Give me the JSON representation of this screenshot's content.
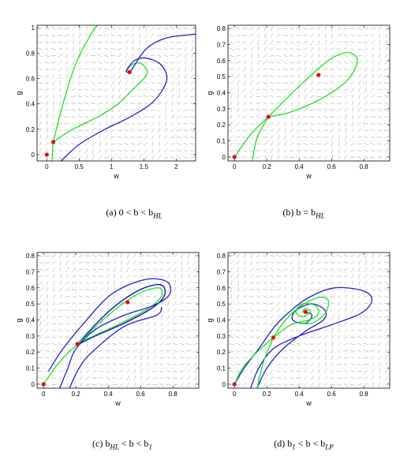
{
  "figure": {
    "panels": [
      {
        "id": "a",
        "caption": "(a)  0 < b < b",
        "caption_sub": "HL",
        "chart_data": {
          "type": "line",
          "xlabel": "w",
          "ylabel": "g",
          "xlim": [
            -0.15,
            2.3
          ],
          "ylim": [
            -0.05,
            1.02
          ],
          "xticks": [
            0,
            0.5,
            1,
            1.5,
            2
          ],
          "xtick_labels": [
            "0",
            "0.5",
            "1",
            "1.5",
            "2"
          ],
          "yticks": [
            0,
            0.2,
            0.4,
            0.6,
            0.8,
            1
          ],
          "ytick_labels": [
            "0",
            "0.2",
            "0.4",
            "0.6",
            "0.8",
            "1"
          ],
          "vector_field": true,
          "grid": "dotted",
          "equilibria": [
            [
              0,
              0
            ],
            [
              0.1,
              0.1
            ],
            [
              1.28,
              0.65
            ]
          ],
          "series": [
            {
              "color": "#22dd22",
              "points": [
                [
                  0.1,
                  0.1
                ],
                [
                  0.25,
                  0.4
                ],
                [
                  0.45,
                  0.72
                ],
                [
                  0.65,
                  0.92
                ],
                [
                  0.78,
                  1.02
                ]
              ]
            },
            {
              "color": "#22dd22",
              "points": [
                [
                  0.1,
                  0.1
                ],
                [
                  0.08,
                  -0.05
                ]
              ]
            },
            {
              "color": "#22dd22",
              "points": [
                [
                  0.1,
                  0.1
                ],
                [
                  0.4,
                  0.2
                ],
                [
                  0.8,
                  0.3
                ],
                [
                  1.1,
                  0.4
                ],
                [
                  1.3,
                  0.5
                ],
                [
                  1.5,
                  0.6
                ],
                [
                  1.55,
                  0.66
                ],
                [
                  1.45,
                  0.72
                ],
                [
                  1.32,
                  0.71
                ],
                [
                  1.25,
                  0.67
                ],
                [
                  1.28,
                  0.65
                ]
              ]
            },
            {
              "color": "#2222cc",
              "points": [
                [
                  0.22,
                  -0.05
                ],
                [
                  0.5,
                  0.08
                ],
                [
                  0.9,
                  0.2
                ],
                [
                  1.3,
                  0.3
                ],
                [
                  1.65,
                  0.42
                ],
                [
                  1.85,
                  0.58
                ],
                [
                  1.78,
                  0.7
                ],
                [
                  1.55,
                  0.76
                ],
                [
                  1.35,
                  0.74
                ],
                [
                  1.23,
                  0.66
                ],
                [
                  1.28,
                  0.65
                ]
              ]
            },
            {
              "color": "#2222cc",
              "points": [
                [
                  1.28,
                  0.65
                ],
                [
                  1.35,
                  0.7
                ],
                [
                  1.55,
                  0.84
                ],
                [
                  1.85,
                  0.92
                ],
                [
                  2.3,
                  0.95
                ]
              ]
            }
          ]
        }
      },
      {
        "id": "b",
        "caption": "(b)  b = b",
        "caption_sub": "HL",
        "chart_data": {
          "type": "line",
          "xlabel": "w",
          "ylabel": "g",
          "xlim": [
            -0.04,
            0.96
          ],
          "ylim": [
            -0.025,
            0.82
          ],
          "xticks": [
            0,
            0.2,
            0.4,
            0.6,
            0.8
          ],
          "xtick_labels": [
            "0",
            "0.2",
            "0.4",
            "0.6",
            "0.8"
          ],
          "yticks": [
            0,
            0.1,
            0.2,
            0.3,
            0.4,
            0.5,
            0.6,
            0.7,
            0.8
          ],
          "ytick_labels": [
            "0",
            "0.1",
            "0.2",
            "0.3",
            "0.4",
            "0.5",
            "0.6",
            "0.7",
            "0.8"
          ],
          "vector_field": true,
          "grid": "dotted",
          "equilibria": [
            [
              0,
              0
            ],
            [
              0.21,
              0.25
            ],
            [
              0.52,
              0.51
            ]
          ],
          "series": [
            {
              "color": "#22dd22",
              "points": [
                [
                  0,
                  0
                ],
                [
                  0.1,
                  0.14
                ],
                [
                  0.21,
                  0.25
                ]
              ]
            },
            {
              "color": "#22dd22",
              "points": [
                [
                  0.21,
                  0.25
                ],
                [
                  0.4,
                  0.44
                ],
                [
                  0.58,
                  0.6
                ],
                [
                  0.7,
                  0.65
                ],
                [
                  0.76,
                  0.6
                ],
                [
                  0.7,
                  0.48
                ],
                [
                  0.55,
                  0.37
                ],
                [
                  0.35,
                  0.28
                ],
                [
                  0.21,
                  0.25
                ]
              ]
            },
            {
              "color": "#22dd22",
              "points": [
                [
                  0.21,
                  0.25
                ],
                [
                  0.14,
                  0.12
                ],
                [
                  0.11,
                  -0.025
                ]
              ]
            }
          ]
        }
      },
      {
        "id": "c",
        "caption": "(c)  b",
        "caption_sub": "HL",
        "caption_mid": " < b < b",
        "caption_sub2": "1",
        "chart_data": {
          "type": "line",
          "xlabel": "w",
          "ylabel": "g",
          "xlim": [
            -0.04,
            0.96
          ],
          "ylim": [
            -0.025,
            0.82
          ],
          "xticks": [
            0,
            0.2,
            0.4,
            0.6,
            0.8
          ],
          "xtick_labels": [
            "0",
            "0.2",
            "0.4",
            "0.6",
            "0.8"
          ],
          "yticks": [
            0,
            0.1,
            0.2,
            0.3,
            0.4,
            0.5,
            0.6,
            0.7,
            0.8
          ],
          "ytick_labels": [
            "0",
            "0.1",
            "0.2",
            "0.3",
            "0.4",
            "0.5",
            "0.6",
            "0.7",
            "0.8"
          ],
          "vector_field": true,
          "grid": "dotted",
          "equilibria": [
            [
              0,
              0
            ],
            [
              0.21,
              0.25
            ],
            [
              0.52,
              0.51
            ]
          ],
          "series": [
            {
              "color": "#0000aa",
              "points": [
                [
                  0.2,
                  0.24
                ],
                [
                  0.4,
                  0.45
                ],
                [
                  0.58,
                  0.58
                ],
                [
                  0.72,
                  0.62
                ],
                [
                  0.75,
                  0.56
                ],
                [
                  0.68,
                  0.48
                ],
                [
                  0.5,
                  0.38
                ],
                [
                  0.32,
                  0.3
                ],
                [
                  0.2,
                  0.24
                ]
              ]
            },
            {
              "color": "#22dd22",
              "points": [
                [
                  0.22,
                  0.26
                ],
                [
                  0.4,
                  0.43
                ],
                [
                  0.58,
                  0.56
                ],
                [
                  0.71,
                  0.6
                ],
                [
                  0.73,
                  0.55
                ],
                [
                  0.66,
                  0.48
                ],
                [
                  0.5,
                  0.39
                ],
                [
                  0.33,
                  0.31
                ],
                [
                  0.22,
                  0.26
                ]
              ]
            },
            {
              "color": "#2222cc",
              "points": [
                [
                  0.1,
                  -0.025
                ],
                [
                  0.15,
                  0.1
                ],
                [
                  0.2,
                  0.22
                ],
                [
                  0.32,
                  0.34
                ],
                [
                  0.5,
                  0.43
                ],
                [
                  0.68,
                  0.49
                ],
                [
                  0.78,
                  0.56
                ],
                [
                  0.76,
                  0.64
                ],
                [
                  0.62,
                  0.65
                ],
                [
                  0.42,
                  0.56
                ],
                [
                  0.25,
                  0.38
                ],
                [
                  0.12,
                  0.22
                ],
                [
                  0.03,
                  0.08
                ]
              ]
            },
            {
              "color": "#2222cc",
              "points": [
                [
                  0.16,
                  -0.025
                ],
                [
                  0.22,
                  0.1
                ],
                [
                  0.3,
                  0.2
                ],
                [
                  0.5,
                  0.36
                ],
                [
                  0.7,
                  0.43
                ],
                [
                  0.73,
                  0.48
                ]
              ]
            },
            {
              "color": "#22dd22",
              "points": [
                [
                  0,
                  0
                ],
                [
                  0.1,
                  0.14
                ],
                [
                  0.21,
                  0.25
                ]
              ]
            }
          ]
        }
      },
      {
        "id": "d",
        "caption": "(d)  b",
        "caption_sub": "1",
        "caption_mid": " < b < b",
        "caption_sub2": "LP",
        "chart_data": {
          "type": "line",
          "xlabel": "w",
          "ylabel": "g",
          "xlim": [
            -0.04,
            0.96
          ],
          "ylim": [
            -0.025,
            0.82
          ],
          "xticks": [
            0,
            0.2,
            0.4,
            0.6,
            0.8
          ],
          "xtick_labels": [
            "0",
            "0.2",
            "0.4",
            "0.6",
            "0.8"
          ],
          "yticks": [
            0,
            0.1,
            0.2,
            0.3,
            0.4,
            0.5,
            0.6,
            0.7,
            0.8
          ],
          "ytick_labels": [
            "0",
            "0.1",
            "0.2",
            "0.3",
            "0.4",
            "0.5",
            "0.6",
            "0.7",
            "0.8"
          ],
          "vector_field": true,
          "grid": "dotted",
          "equilibria": [
            [
              0,
              0
            ],
            [
              0.24,
              0.29
            ],
            [
              0.44,
              0.45
            ]
          ],
          "series": [
            {
              "color": "#2222cc",
              "points": [
                [
                  0.1,
                  -0.025
                ],
                [
                  0.15,
                  0.1
                ],
                [
                  0.24,
                  0.22
                ],
                [
                  0.4,
                  0.3
                ],
                [
                  0.6,
                  0.37
                ],
                [
                  0.78,
                  0.44
                ],
                [
                  0.85,
                  0.52
                ],
                [
                  0.8,
                  0.58
                ],
                [
                  0.62,
                  0.6
                ],
                [
                  0.46,
                  0.54
                ],
                [
                  0.34,
                  0.45
                ],
                [
                  0.25,
                  0.36
                ],
                [
                  0.15,
                  0.22
                ],
                [
                  0.06,
                  0.1
                ],
                [
                  0.0,
                  0.0
                ]
              ]
            },
            {
              "color": "#2222cc",
              "points": [
                [
                  0.14,
                  -0.025
                ],
                [
                  0.2,
                  0.1
                ],
                [
                  0.3,
                  0.22
                ],
                [
                  0.44,
                  0.33
                ],
                [
                  0.55,
                  0.4
                ],
                [
                  0.56,
                  0.46
                ],
                [
                  0.48,
                  0.5
                ],
                [
                  0.38,
                  0.46
                ],
                [
                  0.36,
                  0.4
                ],
                [
                  0.44,
                  0.38
                ],
                [
                  0.48,
                  0.43
                ],
                [
                  0.44,
                  0.45
                ]
              ]
            },
            {
              "color": "#22dd22",
              "points": [
                [
                  0.24,
                  0.29
                ],
                [
                  0.35,
                  0.37
                ],
                [
                  0.46,
                  0.4
                ],
                [
                  0.52,
                  0.44
                ],
                [
                  0.5,
                  0.49
                ],
                [
                  0.42,
                  0.5
                ],
                [
                  0.38,
                  0.45
                ],
                [
                  0.42,
                  0.42
                ],
                [
                  0.47,
                  0.45
                ],
                [
                  0.44,
                  0.47
                ],
                [
                  0.42,
                  0.45
                ],
                [
                  0.44,
                  0.45
                ]
              ]
            },
            {
              "color": "#22dd22",
              "points": [
                [
                  0.24,
                  0.29
                ],
                [
                  0.3,
                  0.38
                ],
                [
                  0.4,
                  0.48
                ],
                [
                  0.52,
                  0.54
                ],
                [
                  0.58,
                  0.52
                ],
                [
                  0.56,
                  0.44
                ],
                [
                  0.48,
                  0.38
                ],
                [
                  0.4,
                  0.38
                ]
              ]
            },
            {
              "color": "#22dd22",
              "points": [
                [
                  0.24,
                  0.29
                ],
                [
                  0.14,
                  0.2
                ],
                [
                  0.05,
                  0.1
                ],
                [
                  0.0,
                  0.0
                ]
              ]
            },
            {
              "color": "#22dd22",
              "points": [
                [
                  0.24,
                  0.29
                ],
                [
                  0.18,
                  0.14
                ],
                [
                  0.14,
                  -0.025
                ]
              ]
            }
          ]
        }
      }
    ]
  }
}
